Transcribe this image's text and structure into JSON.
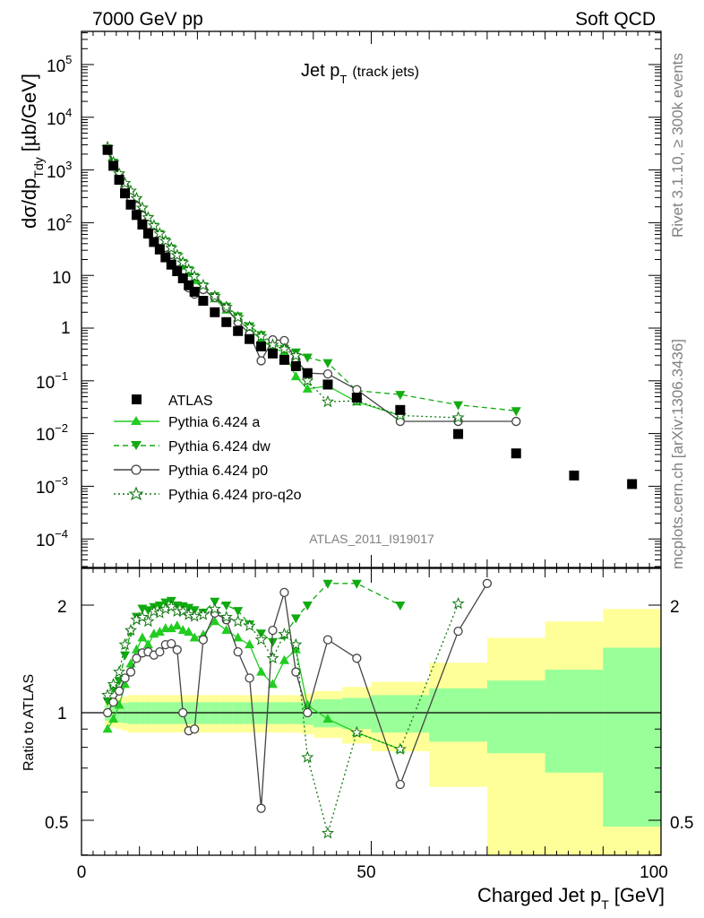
{
  "header": {
    "left": "7000 GeV pp",
    "right": "Soft QCD"
  },
  "side": {
    "rivet": "Rivet 3.1.10, ≥ 300k events",
    "mcplots": "mcplots.cern.ch [arXiv:1306.3436]"
  },
  "chart_data": [
    {
      "type": "scatter",
      "panel": "main",
      "title": "Jet p_T (track jets)",
      "title_main": "Jet p",
      "title_sub": "T",
      "title_note": "(track jets)",
      "ylabel": "dσ/dp_Tdy [µb/GeV]",
      "ylabel_parts": {
        "a": "dσ/dp",
        "sub": "Tdy",
        "b": "[µb/GeV]"
      },
      "xlim": [
        0,
        100
      ],
      "ylim": [
        3e-05,
        400000
      ],
      "yscale": "log",
      "watermark": "ATLAS_2011_I919017",
      "legend_position": "lower-left",
      "x_ticks": [
        0,
        50,
        100
      ],
      "y_tick_labels": {
        "e5": "10",
        "e5s": "5",
        "e4": "10",
        "e4s": "4",
        "e3": "10",
        "e3s": "3",
        "e2": "10",
        "e2s": "2",
        "e1": "10",
        "e0": "1",
        "em1": "10",
        "em1s": "−1",
        "em2": "10",
        "em2s": "−2",
        "em3": "10",
        "em3s": "−3",
        "em4": "10",
        "em4s": "−4"
      },
      "series": [
        {
          "name": "ATLAS",
          "marker": "square",
          "color": "#000000",
          "x": [
            4.5,
            5.5,
            6.5,
            7.5,
            8.5,
            9.5,
            10.5,
            11.5,
            12.5,
            13.5,
            14.5,
            15.5,
            16.5,
            17.5,
            18.5,
            19.5,
            21,
            23,
            25,
            27,
            29,
            31,
            33,
            35,
            37,
            39,
            42.5,
            47.5,
            55,
            65,
            75,
            85,
            95
          ],
          "y": [
            2400,
            1200,
            650,
            360,
            220,
            140,
            92,
            62,
            43,
            31,
            22,
            16,
            12,
            8.8,
            6.5,
            4.9,
            3.3,
            2.0,
            1.3,
            0.88,
            0.62,
            0.45,
            0.33,
            0.25,
            0.19,
            0.14,
            0.085,
            0.048,
            0.028,
            0.0098,
            0.0042,
            0.0016,
            0.0011
          ]
        },
        {
          "name": "Pythia 6.424 a",
          "marker": "triangle-up",
          "color": "#22cc22",
          "dash": "",
          "x": [
            4.5,
            5.5,
            6.5,
            7.5,
            8.5,
            9.5,
            10.5,
            11.5,
            12.5,
            13.5,
            14.5,
            15.5,
            16.5,
            17.5,
            18.5,
            19.5,
            21,
            23,
            25,
            27,
            29,
            31,
            33,
            35,
            37,
            39,
            42.5,
            47.5,
            55
          ],
          "y": [
            2300,
            1150,
            680,
            430,
            300,
            220,
            150,
            100,
            72,
            52,
            38,
            28,
            21,
            15,
            11,
            8,
            5.5,
            3.6,
            2.2,
            1.4,
            0.95,
            0.6,
            0.42,
            0.35,
            0.12,
            0.07,
            0.08,
            0.04,
            0.022
          ]
        },
        {
          "name": "Pythia 6.424 dw",
          "marker": "triangle-down",
          "color": "#11aa11",
          "dash": "6,4",
          "x": [
            4.5,
            5.5,
            6.5,
            7.5,
            8.5,
            9.5,
            10.5,
            11.5,
            12.5,
            13.5,
            14.5,
            15.5,
            16.5,
            17.5,
            18.5,
            19.5,
            21,
            23,
            25,
            27,
            29,
            31,
            33,
            35,
            37,
            39,
            42.5,
            47.5,
            55,
            65,
            75
          ],
          "y": [
            2600,
            1400,
            800,
            520,
            370,
            260,
            180,
            120,
            85,
            62,
            45,
            33,
            24,
            17.5,
            12.8,
            9.5,
            6.3,
            4.1,
            2.6,
            1.7,
            1.1,
            0.75,
            0.52,
            0.41,
            0.35,
            0.28,
            0.22,
            0.065,
            0.055,
            0.035,
            0.027
          ]
        },
        {
          "name": "Pythia 6.424 p0",
          "marker": "circle-open",
          "color": "#444444",
          "dash": "",
          "x": [
            4.5,
            5.5,
            6.5,
            7.5,
            8.5,
            9.5,
            10.5,
            11.5,
            12.5,
            13.5,
            14.5,
            15.5,
            16.5,
            17.5,
            18.5,
            19.5,
            21,
            23,
            25,
            27,
            29,
            31,
            33,
            35,
            37,
            39,
            42.5,
            47.5,
            55,
            65,
            75
          ],
          "y": [
            2400,
            1300,
            780,
            470,
            300,
            205,
            135,
            92,
            62,
            46,
            34,
            25,
            18,
            9,
            5.8,
            4.4,
            5.4,
            3.8,
            2.4,
            1.3,
            0.77,
            0.24,
            0.6,
            0.58,
            0.25,
            0.14,
            0.135,
            0.068,
            0.017,
            0.017,
            0.017
          ]
        },
        {
          "name": "Pythia 6.424 pro-q2o",
          "marker": "star",
          "color": "#117711",
          "dash": "2,3",
          "x": [
            4.5,
            5.5,
            6.5,
            7.5,
            8.5,
            9.5,
            10.5,
            11.5,
            12.5,
            13.5,
            14.5,
            15.5,
            16.5,
            17.5,
            18.5,
            19.5,
            21,
            23,
            25,
            27,
            29,
            31,
            33,
            35,
            37,
            39,
            42.5,
            47.5,
            55,
            65
          ],
          "y": [
            2700,
            1400,
            850,
            560,
            400,
            290,
            190,
            125,
            88,
            62,
            45,
            33,
            24,
            17.5,
            12.8,
            9.5,
            6.5,
            4.0,
            2.5,
            1.6,
            1.05,
            0.7,
            0.48,
            0.4,
            0.3,
            0.1,
            0.04,
            0.042,
            0.022,
            0.02
          ]
        }
      ]
    },
    {
      "type": "scatter",
      "panel": "ratio",
      "ylabel": "Ratio to ATLAS",
      "xlabel": "Charged Jet p_T [GeV]",
      "xlabel_parts": {
        "a": "Charged Jet p",
        "sub": "T",
        "b": "[GeV]"
      },
      "xlim": [
        0,
        100
      ],
      "ylim": [
        0.35,
        2.3
      ],
      "y_ticks": [
        0.5,
        1,
        2
      ],
      "x_ticks": [
        0,
        50,
        100
      ],
      "tick_labels": {
        "y05": "0.5",
        "y1": "1",
        "y2": "2",
        "x0": "0",
        "x50": "50",
        "x100": "100"
      },
      "bands": {
        "inner_color": "#99ff99",
        "outer_color": "#ffff99",
        "bins": [
          4,
          5,
          6,
          7,
          8,
          9,
          10,
          11,
          12,
          13,
          14,
          15,
          16,
          17,
          18,
          19,
          20,
          22,
          24,
          26,
          28,
          30,
          32,
          34,
          36,
          38,
          40,
          45,
          50,
          60,
          70,
          80,
          90,
          100
        ],
        "inner": [
          0.05,
          0.055,
          0.06,
          0.065,
          0.07,
          0.07,
          0.07,
          0.07,
          0.07,
          0.07,
          0.07,
          0.07,
          0.07,
          0.07,
          0.07,
          0.07,
          0.07,
          0.07,
          0.07,
          0.07,
          0.07,
          0.07,
          0.07,
          0.07,
          0.07,
          0.075,
          0.09,
          0.1,
          0.12,
          0.17,
          0.23,
          0.32,
          0.52
        ],
        "outer": [
          0.08,
          0.09,
          0.1,
          0.11,
          0.12,
          0.12,
          0.12,
          0.12,
          0.12,
          0.12,
          0.12,
          0.12,
          0.12,
          0.12,
          0.12,
          0.12,
          0.12,
          0.12,
          0.12,
          0.12,
          0.12,
          0.12,
          0.12,
          0.12,
          0.12,
          0.13,
          0.15,
          0.18,
          0.22,
          0.38,
          0.62,
          0.8,
          0.95
        ]
      },
      "series": [
        {
          "name": "Pythia 6.424 a",
          "color": "#22cc22",
          "dash": "",
          "marker": "triangle-up",
          "x": [
            4.5,
            5.5,
            6.5,
            7.5,
            8.5,
            9.5,
            10.5,
            11.5,
            12.5,
            13.5,
            14.5,
            15.5,
            16.5,
            17.5,
            18.5,
            19.5,
            21,
            23,
            25,
            27,
            29,
            31,
            33,
            35,
            37,
            39,
            42.5,
            47.5,
            55
          ],
          "y": [
            0.9,
            0.96,
            1.05,
            1.2,
            1.37,
            1.5,
            1.62,
            1.55,
            1.66,
            1.68,
            1.72,
            1.72,
            1.75,
            1.7,
            1.68,
            1.62,
            1.65,
            1.8,
            1.7,
            1.62,
            1.55,
            1.3,
            1.2,
            1.4,
            1.5,
            1.05,
            0.96,
            0.88,
            0.79
          ]
        },
        {
          "name": "Pythia 6.424 dw",
          "color": "#11aa11",
          "dash": "6,4",
          "marker": "triangle-down",
          "x": [
            4.5,
            5.5,
            6.5,
            7.5,
            8.5,
            9.5,
            10.5,
            11.5,
            12.5,
            13.5,
            14.5,
            15.5,
            16.5,
            17.5,
            18.5,
            19.5,
            21,
            23,
            25,
            27,
            29,
            31,
            33,
            35,
            37,
            39,
            42.5,
            47.5,
            55
          ],
          "y": [
            1.08,
            1.17,
            1.23,
            1.45,
            1.68,
            1.86,
            1.96,
            1.94,
            1.98,
            2.0,
            2.04,
            2.06,
            2.0,
            1.99,
            1.97,
            1.94,
            1.91,
            2.05,
            2.0,
            1.93,
            1.77,
            1.67,
            1.58,
            1.64,
            1.84,
            2.0,
            2.3,
            2.3,
            2.0
          ]
        },
        {
          "name": "Pythia 6.424 p0",
          "color": "#444444",
          "dash": "",
          "marker": "circle-open",
          "x": [
            4.5,
            5.5,
            6.5,
            7.5,
            8.5,
            9.5,
            10.5,
            11.5,
            12.5,
            13.5,
            14.5,
            15.5,
            16.5,
            17.5,
            18.5,
            19.5,
            21,
            23,
            25,
            27,
            29,
            31,
            33,
            35,
            37,
            39,
            42.5,
            47.5,
            55,
            65,
            70
          ],
          "y": [
            1.0,
            1.07,
            1.15,
            1.25,
            1.3,
            1.42,
            1.47,
            1.48,
            1.45,
            1.48,
            1.55,
            1.56,
            1.5,
            1.0,
            0.89,
            0.9,
            1.6,
            1.9,
            1.82,
            1.48,
            1.25,
            0.54,
            1.7,
            2.17,
            1.3,
            1.0,
            1.6,
            1.42,
            0.63,
            1.69,
            2.3
          ]
        },
        {
          "name": "Pythia 6.424 pro-q2o",
          "color": "#117711",
          "dash": "2,3",
          "marker": "star",
          "x": [
            4.5,
            5.5,
            6.5,
            7.5,
            8.5,
            9.5,
            10.5,
            11.5,
            12.5,
            13.5,
            14.5,
            15.5,
            16.5,
            17.5,
            18.5,
            19.5,
            21,
            23,
            25,
            27,
            29,
            31,
            33,
            35,
            37,
            39,
            42.5,
            47.5,
            55,
            65
          ],
          "y": [
            1.12,
            1.2,
            1.3,
            1.55,
            1.7,
            1.82,
            1.85,
            1.8,
            1.92,
            1.9,
            1.95,
            1.98,
            1.92,
            1.92,
            1.88,
            1.86,
            1.88,
            1.95,
            1.85,
            1.8,
            1.75,
            1.6,
            1.42,
            1.66,
            1.55,
            0.75,
            0.46,
            0.88,
            0.79,
            2.02
          ]
        }
      ]
    }
  ]
}
